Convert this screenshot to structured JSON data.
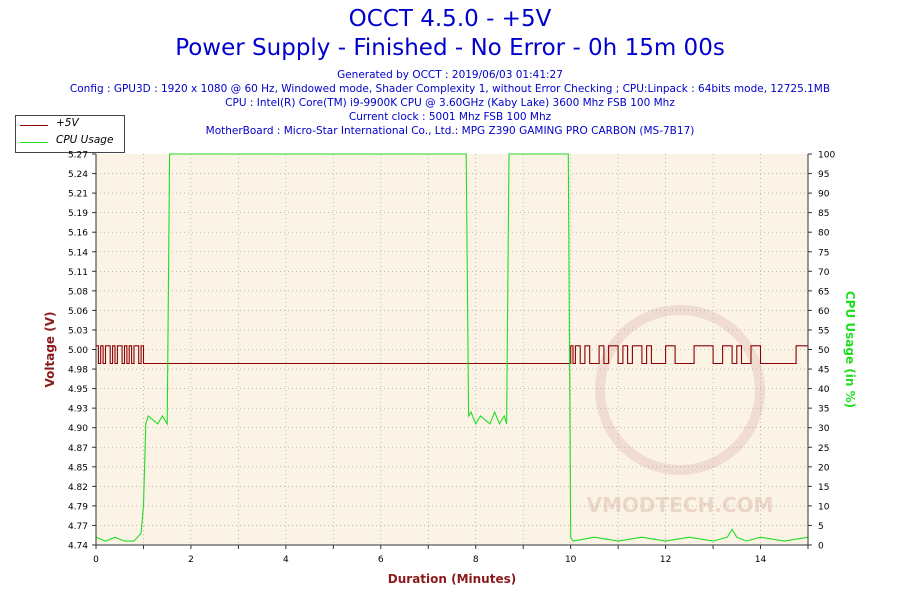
{
  "header": {
    "title": "OCCT 4.5.0 - +5V",
    "subtitle": "Power Supply - Finished - No Error - 0h 15m 00s",
    "generated": "Generated by OCCT : 2019/06/03 01:41:27",
    "config": "Config : GPU3D : 1920 x 1080 @ 60 Hz, Windowed mode, Shader Complexity 1, without Error Checking ; CPU:Linpack : 64bits mode, 12725.1MB",
    "cpu": "CPU : Intel(R) Core(TM) i9-9900K CPU @ 3.60GHz (Kaby Lake) 3600 Mhz FSB 100 Mhz",
    "clock": "Current clock : 5001 Mhz FSB 100 Mhz",
    "motherboard": "MotherBoard : Micro-Star International Co., Ltd.: MPG Z390 GAMING PRO CARBON (MS-7B17)"
  },
  "legend": {
    "items": [
      {
        "label": "+5V",
        "color": "#8b0000"
      },
      {
        "label": "CPU Usage",
        "color": "#22dd22"
      }
    ]
  },
  "chart_data": {
    "type": "line",
    "xlabel": "Duration (Minutes)",
    "ylabel": "Voltage (V)",
    "y2label": "CPU Usage (in %)",
    "xlim": [
      0,
      15
    ],
    "ylim": [
      4.74,
      5.27
    ],
    "y2lim": [
      0,
      100
    ],
    "x_ticks": [
      0,
      2,
      4,
      6,
      8,
      10,
      12,
      14
    ],
    "y_ticks": [
      "4.74",
      "4.77",
      "4.79",
      "4.82",
      "4.85",
      "4.87",
      "4.90",
      "4.93",
      "4.95",
      "4.98",
      "5.00",
      "5.03",
      "5.06",
      "5.08",
      "5.11",
      "5.14",
      "5.16",
      "5.19",
      "5.21",
      "5.24",
      "5.27"
    ],
    "y2_ticks": [
      "0",
      "5",
      "10",
      "15",
      "20",
      "25",
      "30",
      "35",
      "40",
      "45",
      "50",
      "55",
      "60",
      "65",
      "70",
      "75",
      "80",
      "85",
      "90",
      "95",
      "100"
    ],
    "grid": true,
    "watermark": "VMODTECH.COM",
    "series": [
      {
        "name": "+5V",
        "axis": "left",
        "color": "#8b0000",
        "baseline": 4.986,
        "spike_high": 5.01,
        "x": [
          0.0,
          0.05,
          0.1,
          0.15,
          0.2,
          0.25,
          0.3,
          0.35,
          0.4,
          0.45,
          0.5,
          0.55,
          0.6,
          0.65,
          0.7,
          0.75,
          0.8,
          0.85,
          0.9,
          0.95,
          1.0,
          1.05,
          1.1,
          1.5,
          2.0,
          4.0,
          6.0,
          7.8,
          8.5,
          9.95,
          10.0,
          10.05,
          10.1,
          10.15,
          10.2,
          10.3,
          10.4,
          10.5,
          10.6,
          10.7,
          10.8,
          10.9,
          11.0,
          11.1,
          11.2,
          11.3,
          11.4,
          11.5,
          11.6,
          11.7,
          12.0,
          12.2,
          12.6,
          13.0,
          13.2,
          13.4,
          13.5,
          13.6,
          13.8,
          14.0,
          14.5,
          14.75,
          15.0
        ],
        "y": [
          5.01,
          4.986,
          5.01,
          4.986,
          5.01,
          5.01,
          4.986,
          5.01,
          4.986,
          5.01,
          5.01,
          4.986,
          5.01,
          4.986,
          5.01,
          4.986,
          5.01,
          5.01,
          4.986,
          5.01,
          4.986,
          4.986,
          4.986,
          4.986,
          4.986,
          4.986,
          4.986,
          4.986,
          4.986,
          4.986,
          5.01,
          4.986,
          5.01,
          5.01,
          4.986,
          5.01,
          4.986,
          4.986,
          5.01,
          4.986,
          5.01,
          5.01,
          4.986,
          5.01,
          4.986,
          5.01,
          5.01,
          4.986,
          5.01,
          4.986,
          5.01,
          4.986,
          5.01,
          4.986,
          5.01,
          4.986,
          5.01,
          4.986,
          5.01,
          4.986,
          4.986,
          5.01,
          4.986
        ]
      },
      {
        "name": "CPU Usage",
        "axis": "right",
        "color": "#22dd22",
        "x": [
          0.0,
          0.2,
          0.4,
          0.6,
          0.8,
          0.95,
          1.0,
          1.05,
          1.1,
          1.2,
          1.3,
          1.4,
          1.45,
          1.5,
          1.55,
          2.0,
          4.0,
          6.0,
          7.8,
          7.85,
          7.9,
          8.0,
          8.1,
          8.2,
          8.3,
          8.4,
          8.5,
          8.6,
          8.65,
          8.7,
          9.0,
          9.5,
          9.95,
          10.0,
          10.05,
          10.5,
          11.0,
          11.5,
          12.0,
          12.5,
          13.0,
          13.3,
          13.4,
          13.5,
          13.7,
          14.0,
          14.5,
          15.0
        ],
        "y": [
          2,
          1,
          2,
          1,
          1,
          3,
          10,
          31,
          33,
          32,
          31,
          33,
          32,
          31,
          100,
          100,
          100,
          100,
          100,
          33,
          34,
          31,
          33,
          32,
          31,
          34,
          31,
          33,
          31,
          100,
          100,
          100,
          100,
          2,
          1,
          2,
          1,
          2,
          1,
          2,
          1,
          2,
          4,
          2,
          1,
          2,
          1,
          2
        ]
      }
    ]
  }
}
